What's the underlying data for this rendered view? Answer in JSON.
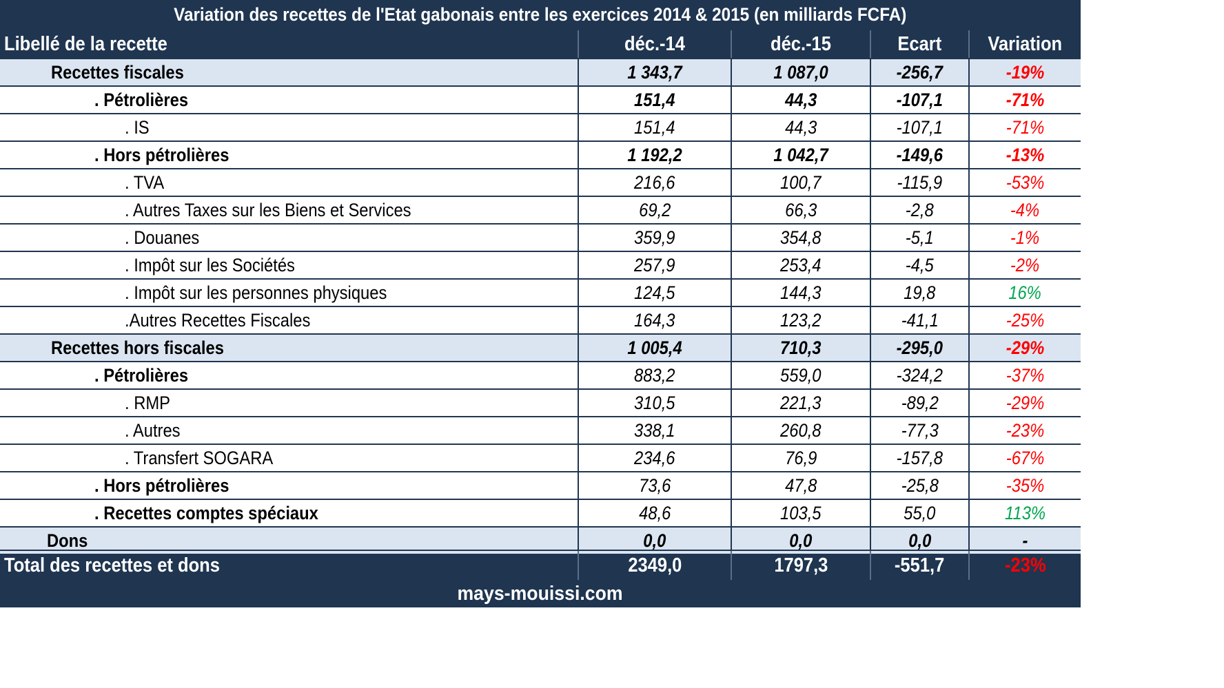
{
  "title": "Variation des recettes de l'Etat gabonais entre les exercices 2014 & 2015 (en milliards FCFA)",
  "footer": "mays-mouissi.com",
  "colors": {
    "header_bg": "#1f3550",
    "group_bg": "#dbe5f1",
    "negative": "#ff0000",
    "positive": "#00a550"
  },
  "chart_data": {
    "type": "table",
    "columns": [
      "Libellé de la recette",
      "déc.-14",
      "déc.-15",
      "Ecart",
      "Variation"
    ],
    "rows": [
      {
        "label": "Recettes fiscales",
        "dec14": "1 343,7",
        "dec15": "1 087,0",
        "ecart": "-256,7",
        "variation": "-19%"
      },
      {
        "label": ". Pétrolières",
        "dec14": "151,4",
        "dec15": "44,3",
        "ecart": "-107,1",
        "variation": "-71%"
      },
      {
        "label": ". IS",
        "dec14": "151,4",
        "dec15": "44,3",
        "ecart": "-107,1",
        "variation": "-71%"
      },
      {
        "label": ". Hors pétrolières",
        "dec14": "1 192,2",
        "dec15": "1 042,7",
        "ecart": "-149,6",
        "variation": "-13%"
      },
      {
        "label": ". TVA",
        "dec14": "216,6",
        "dec15": "100,7",
        "ecart": "-115,9",
        "variation": "-53%"
      },
      {
        "label": ". Autres Taxes sur les Biens et Services",
        "dec14": "69,2",
        "dec15": "66,3",
        "ecart": "-2,8",
        "variation": "-4%"
      },
      {
        "label": ". Douanes",
        "dec14": "359,9",
        "dec15": "354,8",
        "ecart": "-5,1",
        "variation": "-1%"
      },
      {
        "label": ". Impôt sur les Sociétés",
        "dec14": "257,9",
        "dec15": "253,4",
        "ecart": "-4,5",
        "variation": "-2%"
      },
      {
        "label": ". Impôt sur les personnes physiques",
        "dec14": "124,5",
        "dec15": "144,3",
        "ecart": "19,8",
        "variation": "16%"
      },
      {
        "label": ".Autres Recettes Fiscales",
        "dec14": "164,3",
        "dec15": "123,2",
        "ecart": "-41,1",
        "variation": "-25%"
      },
      {
        "label": "Recettes hors fiscales",
        "dec14": "1 005,4",
        "dec15": "710,3",
        "ecart": "-295,0",
        "variation": "-29%"
      },
      {
        "label": ". Pétrolières",
        "dec14": "883,2",
        "dec15": "559,0",
        "ecart": "-324,2",
        "variation": "-37%"
      },
      {
        "label": ". RMP",
        "dec14": "310,5",
        "dec15": "221,3",
        "ecart": "-89,2",
        "variation": "-29%"
      },
      {
        "label": ". Autres",
        "dec14": "338,1",
        "dec15": "260,8",
        "ecart": "-77,3",
        "variation": "-23%"
      },
      {
        "label": ". Transfert SOGARA",
        "dec14": "234,6",
        "dec15": "76,9",
        "ecart": "-157,8",
        "variation": "-67%"
      },
      {
        "label": ". Hors pétrolières",
        "dec14": "73,6",
        "dec15": "47,8",
        "ecart": "-25,8",
        "variation": "-35%"
      },
      {
        "label": ". Recettes comptes spéciaux",
        "dec14": "48,6",
        "dec15": "103,5",
        "ecart": "55,0",
        "variation": "113%"
      },
      {
        "label": "Dons",
        "dec14": "0,0",
        "dec15": "0,0",
        "ecart": "0,0",
        "variation": "-"
      }
    ],
    "total": {
      "label": "Total des recettes et dons",
      "dec14": "2349,0",
      "dec15": "1797,3",
      "ecart": "-551,7",
      "variation": "-23%"
    }
  }
}
